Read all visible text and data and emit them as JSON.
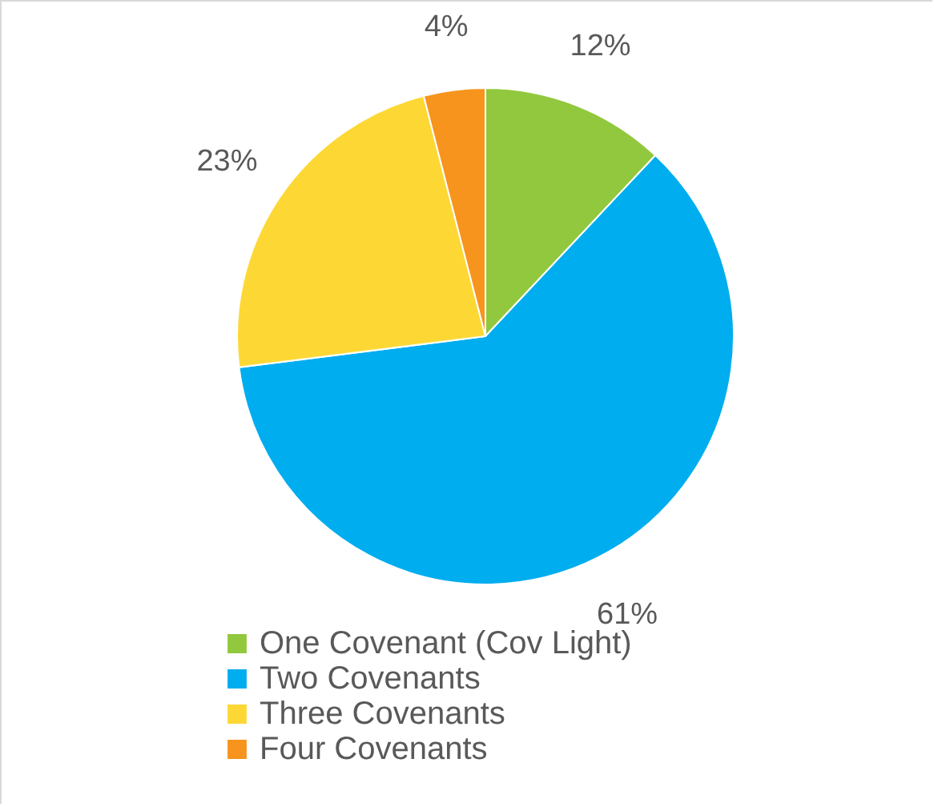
{
  "chart_data": {
    "type": "pie",
    "categories": [
      "One Covenant (Cov Light)",
      "Two Covenants",
      "Three Covenants",
      "Four Covenants"
    ],
    "values": [
      12,
      61,
      23,
      4
    ],
    "colors": [
      "#92c83e",
      "#00adef",
      "#fdd835",
      "#f7941d"
    ],
    "value_labels": [
      "12%",
      "61%",
      "23%",
      "4%"
    ],
    "legend": "bottom"
  }
}
